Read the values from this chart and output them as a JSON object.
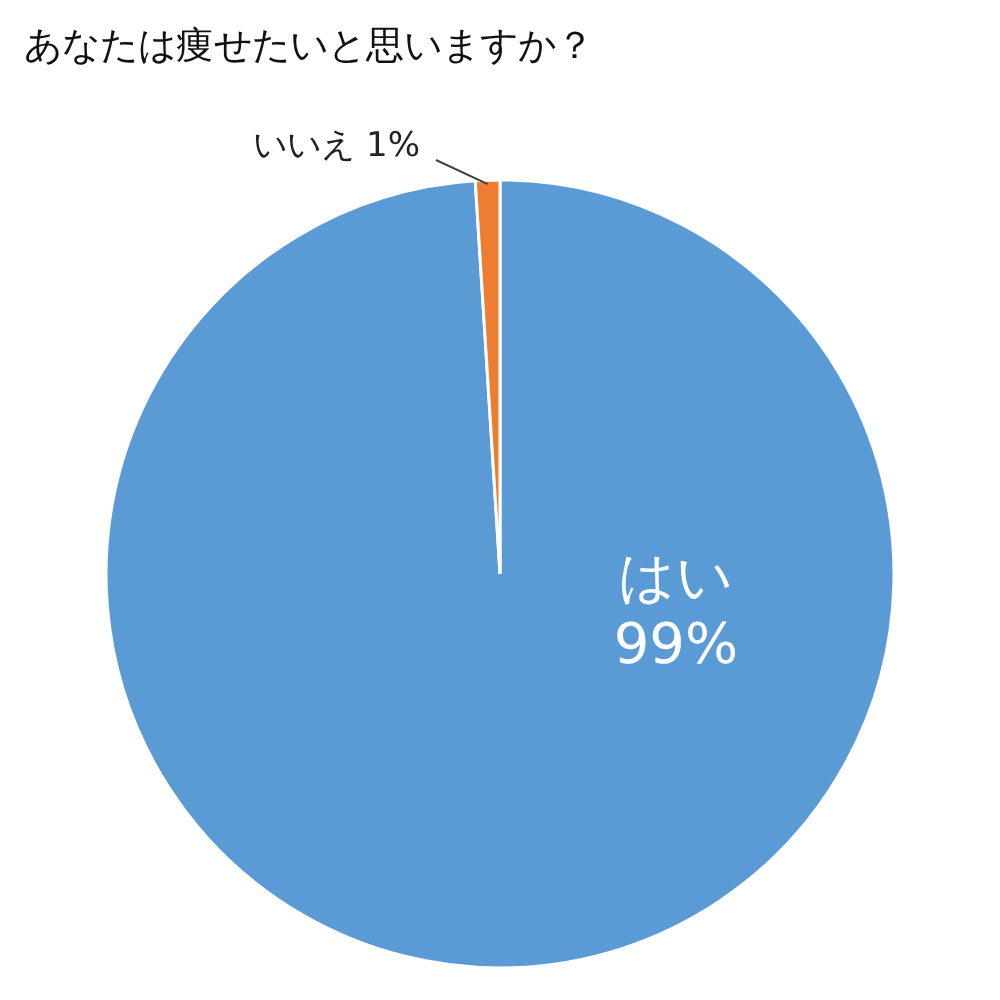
{
  "chart_data": {
    "type": "pie",
    "title": "あなたは痩せたいと思いますか？",
    "categories": [
      "はい",
      "いいえ"
    ],
    "values": [
      99,
      1
    ],
    "colors": [
      "#5b9bd5",
      "#ed7d31"
    ],
    "value_labels": [
      "99%",
      "1%"
    ]
  }
}
